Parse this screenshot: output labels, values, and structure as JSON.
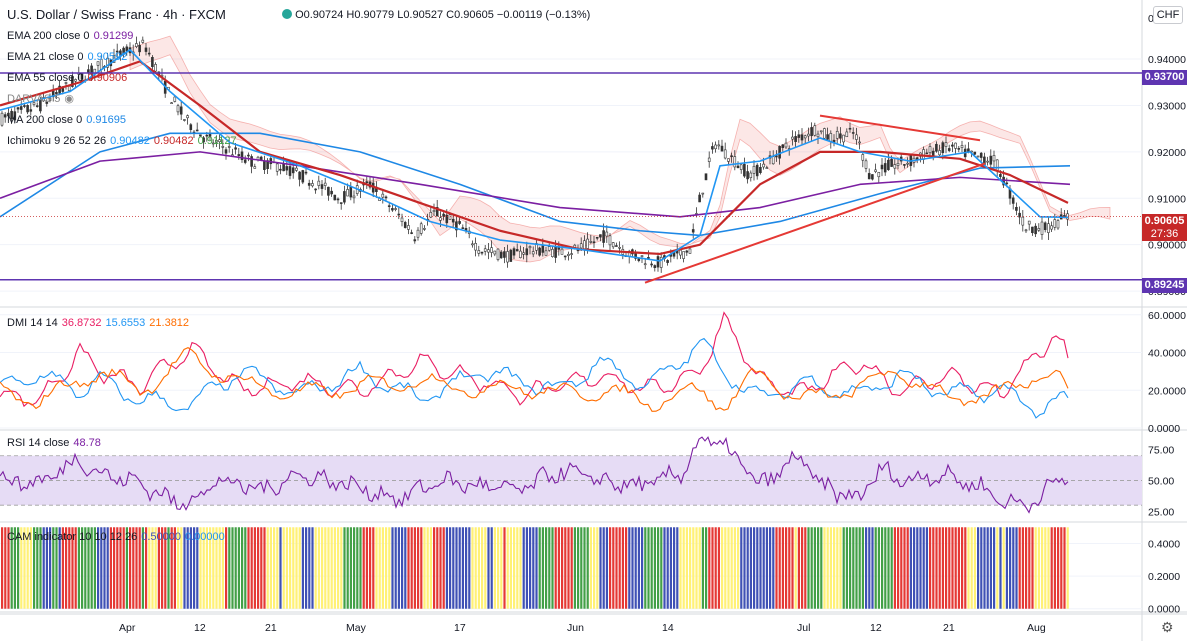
{
  "header": {
    "symbol_title": "U.S. Dollar / Swiss Franc · 4h · FXCM",
    "ohlc": "O0.90724 H0.90779 L0.90527 C0.90605 −0.00119 (−0.13%)",
    "currency": "CHF",
    "settings_icon": "gear-icon"
  },
  "legend": {
    "ema200": {
      "name": "EMA 200 close 0",
      "value": "0.91299"
    },
    "ema21": {
      "name": "EMA 21 close 0",
      "value": "0.90592"
    },
    "ema55": {
      "name": "EMA 55 close 0",
      "value": "0.90906"
    },
    "darvas": {
      "name": "DARVAS 5"
    },
    "ma200": {
      "name": "MA 200 close 0",
      "value": "0.91695"
    },
    "ichimoku": {
      "name": "Ichimoku 9 26 52 26",
      "v1": "0.90482",
      "v2": "0.90482",
      "v3": "0.91127"
    }
  },
  "price_tags": {
    "upper_line": "0.93700",
    "lower_line": "0.89245",
    "last_price": "0.90605",
    "countdown": "27:36"
  },
  "dmi_legend": {
    "name": "DMI 14 14",
    "plus": "36.8732",
    "minus": "15.6553",
    "adx": "21.3812"
  },
  "rsi_legend": {
    "name": "RSI 14 close",
    "value": "48.78"
  },
  "cam_legend": {
    "name": "CAM indicator 10 10 12 26",
    "v1": "0.50000",
    "v2": "0.00000"
  },
  "colors": {
    "ema200": "#7b1fa2",
    "ema21": "#2196f3",
    "ema55": "#c62828",
    "ma200": "#1e88e5",
    "hline": "#5e35b1",
    "trendline": "#e53935",
    "dmi_plus": "#e91e63",
    "dmi_minus": "#2196f3",
    "dmi_adx": "#ff6d00",
    "rsi": "#7b1fa2",
    "rsi_band": "#e6dcf5",
    "cam_blue": "#3f51b5",
    "cam_red": "#e53935",
    "cam_yellow": "#fff176",
    "cam_green": "#43a047"
  },
  "chart_data": [
    {
      "type": "candlestick",
      "panel": "price",
      "x_labels": [
        "Apr",
        "12",
        "21",
        "May",
        "17",
        "Jun",
        "14",
        "Jul",
        "12",
        "21",
        "Aug"
      ],
      "ylim": [
        0.887,
        0.951
      ],
      "y_ticks": [
        "0.89000",
        "0.90000",
        "0.91000",
        "0.92000",
        "0.93000",
        "0.94000"
      ],
      "y_top_label": "0",
      "close_path": [
        [
          0,
          0.927
        ],
        [
          40,
          0.93
        ],
        [
          80,
          0.936
        ],
        [
          120,
          0.941
        ],
        [
          145,
          0.943
        ],
        [
          165,
          0.934
        ],
        [
          185,
          0.927
        ],
        [
          205,
          0.923
        ],
        [
          225,
          0.921
        ],
        [
          250,
          0.918
        ],
        [
          280,
          0.917
        ],
        [
          310,
          0.914
        ],
        [
          340,
          0.91
        ],
        [
          370,
          0.913
        ],
        [
          400,
          0.906
        ],
        [
          415,
          0.902
        ],
        [
          435,
          0.907
        ],
        [
          460,
          0.904
        ],
        [
          480,
          0.899
        ],
        [
          510,
          0.8975
        ],
        [
          530,
          0.899
        ],
        [
          560,
          0.8985
        ],
        [
          580,
          0.899
        ],
        [
          605,
          0.902
        ],
        [
          630,
          0.898
        ],
        [
          660,
          0.896
        ],
        [
          690,
          0.899
        ],
        [
          700,
          0.91
        ],
        [
          715,
          0.922
        ],
        [
          730,
          0.919
        ],
        [
          750,
          0.915
        ],
        [
          770,
          0.918
        ],
        [
          790,
          0.922
        ],
        [
          815,
          0.925
        ],
        [
          830,
          0.923
        ],
        [
          855,
          0.924
        ],
        [
          870,
          0.915
        ],
        [
          890,
          0.917
        ],
        [
          910,
          0.918
        ],
        [
          930,
          0.92
        ],
        [
          950,
          0.921
        ],
        [
          975,
          0.919
        ],
        [
          995,
          0.918
        ],
        [
          1010,
          0.911
        ],
        [
          1025,
          0.904
        ],
        [
          1045,
          0.9035
        ],
        [
          1068,
          0.906
        ]
      ],
      "lines": {
        "ema200": [
          [
            0,
            0.91
          ],
          [
            100,
            0.918
          ],
          [
            200,
            0.92
          ],
          [
            300,
            0.917
          ],
          [
            420,
            0.913
          ],
          [
            560,
            0.908
          ],
          [
            680,
            0.906
          ],
          [
            760,
            0.908
          ],
          [
            860,
            0.913
          ],
          [
            960,
            0.9145
          ],
          [
            1070,
            0.913
          ]
        ],
        "ma200": [
          [
            0,
            0.906
          ],
          [
            100,
            0.92
          ],
          [
            170,
            0.924
          ],
          [
            260,
            0.924
          ],
          [
            360,
            0.92
          ],
          [
            460,
            0.913
          ],
          [
            560,
            0.905
          ],
          [
            640,
            0.903
          ],
          [
            700,
            0.902
          ],
          [
            780,
            0.905
          ],
          [
            880,
            0.911
          ],
          [
            980,
            0.9165
          ],
          [
            1070,
            0.917
          ]
        ],
        "ema55": [
          [
            0,
            0.93
          ],
          [
            80,
            0.935
          ],
          [
            140,
            0.9395
          ],
          [
            200,
            0.93
          ],
          [
            260,
            0.92
          ],
          [
            340,
            0.915
          ],
          [
            420,
            0.909
          ],
          [
            500,
            0.903
          ],
          [
            580,
            0.899
          ],
          [
            660,
            0.898
          ],
          [
            700,
            0.9
          ],
          [
            760,
            0.913
          ],
          [
            820,
            0.92
          ],
          [
            880,
            0.92
          ],
          [
            960,
            0.9185
          ],
          [
            1010,
            0.915
          ],
          [
            1068,
            0.909
          ]
        ],
        "ema21": [
          [
            0,
            0.929
          ],
          [
            70,
            0.933
          ],
          [
            130,
            0.942
          ],
          [
            170,
            0.933
          ],
          [
            230,
            0.922
          ],
          [
            300,
            0.917
          ],
          [
            380,
            0.91
          ],
          [
            430,
            0.905
          ],
          [
            500,
            0.901
          ],
          [
            580,
            0.899
          ],
          [
            660,
            0.8965
          ],
          [
            700,
            0.902
          ],
          [
            720,
            0.917
          ],
          [
            760,
            0.918
          ],
          [
            820,
            0.923
          ],
          [
            860,
            0.92
          ],
          [
            910,
            0.918
          ],
          [
            970,
            0.92
          ],
          [
            1010,
            0.912
          ],
          [
            1040,
            0.906
          ],
          [
            1068,
            0.9059
          ]
        ]
      },
      "h_lines": [
        0.937,
        0.89245
      ],
      "last_price": 0.90605,
      "trendlines": [
        [
          [
            645,
            0.8918
          ],
          [
            985,
            0.9175
          ]
        ],
        [
          [
            820,
            0.9278
          ],
          [
            980,
            0.9225
          ]
        ]
      ]
    },
    {
      "type": "line",
      "panel": "DMI",
      "ylim": [
        0,
        62
      ],
      "y_ticks": [
        "0.0000",
        "20.0000",
        "40.0000",
        "60.0000"
      ],
      "series": [
        {
          "name": "+DI",
          "values": [
            [
              0,
              18
            ],
            [
              40,
              15
            ],
            [
              80,
              40
            ],
            [
              100,
              30
            ],
            [
              140,
              22
            ],
            [
              190,
              42
            ],
            [
              240,
              20
            ],
            [
              300,
              25
            ],
            [
              360,
              20
            ],
            [
              420,
              35
            ],
            [
              480,
              25
            ],
            [
              520,
              18
            ],
            [
              560,
              22
            ],
            [
              600,
              28
            ],
            [
              650,
              20
            ],
            [
              700,
              30
            ],
            [
              725,
              58
            ],
            [
              760,
              25
            ],
            [
              800,
              18
            ],
            [
              860,
              35
            ],
            [
              900,
              20
            ],
            [
              950,
              28
            ],
            [
              1000,
              18
            ],
            [
              1040,
              40
            ],
            [
              1055,
              50
            ],
            [
              1068,
              37
            ]
          ]
        },
        {
          "name": "−DI",
          "values": [
            [
              0,
              22
            ],
            [
              40,
              28
            ],
            [
              80,
              20
            ],
            [
              100,
              25
            ],
            [
              140,
              15
            ],
            [
              190,
              12
            ],
            [
              240,
              30
            ],
            [
              300,
              18
            ],
            [
              360,
              30
            ],
            [
              420,
              15
            ],
            [
              480,
              30
            ],
            [
              520,
              25
            ],
            [
              560,
              20
            ],
            [
              600,
              35
            ],
            [
              650,
              22
            ],
            [
              700,
              45
            ],
            [
              725,
              30
            ],
            [
              760,
              15
            ],
            [
              800,
              24
            ],
            [
              860,
              18
            ],
            [
              900,
              28
            ],
            [
              950,
              18
            ],
            [
              1000,
              20
            ],
            [
              1040,
              10
            ],
            [
              1055,
              12
            ],
            [
              1068,
              16
            ]
          ]
        },
        {
          "name": "ADX",
          "values": [
            [
              0,
              20
            ],
            [
              40,
              14
            ],
            [
              80,
              25
            ],
            [
              100,
              30
            ],
            [
              140,
              20
            ],
            [
              190,
              38
            ],
            [
              240,
              24
            ],
            [
              300,
              18
            ],
            [
              360,
              22
            ],
            [
              420,
              25
            ],
            [
              480,
              20
            ],
            [
              520,
              22
            ],
            [
              560,
              18
            ],
            [
              600,
              20
            ],
            [
              650,
              14
            ],
            [
              700,
              20
            ],
            [
              725,
              12
            ],
            [
              760,
              30
            ],
            [
              800,
              14
            ],
            [
              860,
              22
            ],
            [
              900,
              30
            ],
            [
              950,
              15
            ],
            [
              1000,
              18
            ],
            [
              1040,
              30
            ],
            [
              1055,
              28
            ],
            [
              1068,
              21
            ]
          ]
        }
      ]
    },
    {
      "type": "line",
      "panel": "RSI",
      "ylim": [
        18,
        90
      ],
      "y_ticks": [
        "25.00",
        "50.00",
        "75.00"
      ],
      "band": [
        30,
        70
      ],
      "series": [
        {
          "name": "RSI 14",
          "values": [
            [
              0,
              50
            ],
            [
              40,
              48
            ],
            [
              80,
              68
            ],
            [
              100,
              55
            ],
            [
              140,
              48
            ],
            [
              180,
              30
            ],
            [
              220,
              50
            ],
            [
              260,
              42
            ],
            [
              300,
              55
            ],
            [
              340,
              48
            ],
            [
              400,
              35
            ],
            [
              440,
              50
            ],
            [
              480,
              45
            ],
            [
              520,
              42
            ],
            [
              560,
              58
            ],
            [
              600,
              50
            ],
            [
              640,
              45
            ],
            [
              680,
              55
            ],
            [
              700,
              82
            ],
            [
              720,
              80
            ],
            [
              740,
              65
            ],
            [
              760,
              45
            ],
            [
              800,
              70
            ],
            [
              820,
              45
            ],
            [
              860,
              35
            ],
            [
              880,
              60
            ],
            [
              900,
              50
            ],
            [
              940,
              55
            ],
            [
              980,
              45
            ],
            [
              1010,
              30
            ],
            [
              1040,
              35
            ],
            [
              1060,
              55
            ],
            [
              1068,
              49
            ]
          ]
        }
      ]
    },
    {
      "type": "bar",
      "panel": "CAM",
      "ylim": [
        -0.02,
        0.52
      ],
      "y_ticks": [
        "0.0000",
        "0.2000",
        "0.4000"
      ],
      "bar_value": 0.5,
      "categories_by_color": [
        "cam_blue",
        "cam_red",
        "cam_yellow",
        "cam_green"
      ]
    }
  ]
}
